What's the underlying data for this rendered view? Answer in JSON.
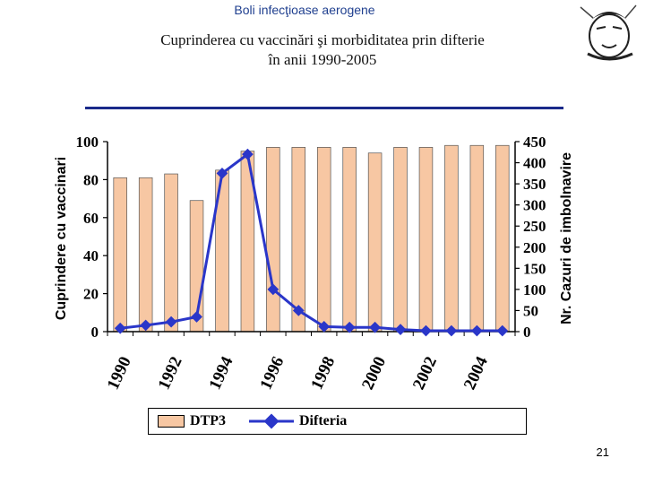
{
  "header": {
    "text": "Boli infecţioase aerogene"
  },
  "title": {
    "line1": "Cuprinderea cu vaccinări şi morbiditatea prin difterie",
    "line2": "în anii 1990-2005"
  },
  "page_number": "21",
  "colors": {
    "bar": "#f7c7a3",
    "line": "#2a36c9",
    "rule": "#1a2a8a",
    "header": "#1f3f8f"
  },
  "chart_data": {
    "type": "bar",
    "categories": [
      "1990",
      "1991",
      "1992",
      "1993",
      "1994",
      "1995",
      "1996",
      "1997",
      "1998",
      "1999",
      "2000",
      "2001",
      "2002",
      "2003",
      "2004",
      "2005"
    ],
    "x_tick_labels": [
      "1990",
      "1992",
      "1994",
      "1996",
      "1998",
      "2000",
      "2002",
      "2004"
    ],
    "series": [
      {
        "name": "DTP3",
        "type": "bar",
        "axis": "left",
        "values": [
          81,
          81,
          83,
          69,
          85,
          95,
          97,
          97,
          97,
          97,
          94,
          97,
          97,
          98,
          98,
          98
        ]
      },
      {
        "name": "Difteria",
        "type": "line",
        "axis": "right",
        "values": [
          8,
          15,
          23,
          35,
          375,
          420,
          100,
          50,
          12,
          10,
          10,
          5,
          2,
          2,
          2,
          2
        ]
      }
    ],
    "ylabel": "Cuprindere cu vaccinari",
    "ylabel_right": "Nr. Cazuri de imbolnavire",
    "ylim": [
      0,
      100
    ],
    "ylim_right": [
      0,
      450
    ],
    "yticks": [
      0,
      20,
      40,
      60,
      80,
      100
    ],
    "yticks_right": [
      0,
      50,
      100,
      150,
      200,
      250,
      300,
      350,
      400,
      450
    ],
    "grid": false,
    "legend_position": "bottom"
  }
}
